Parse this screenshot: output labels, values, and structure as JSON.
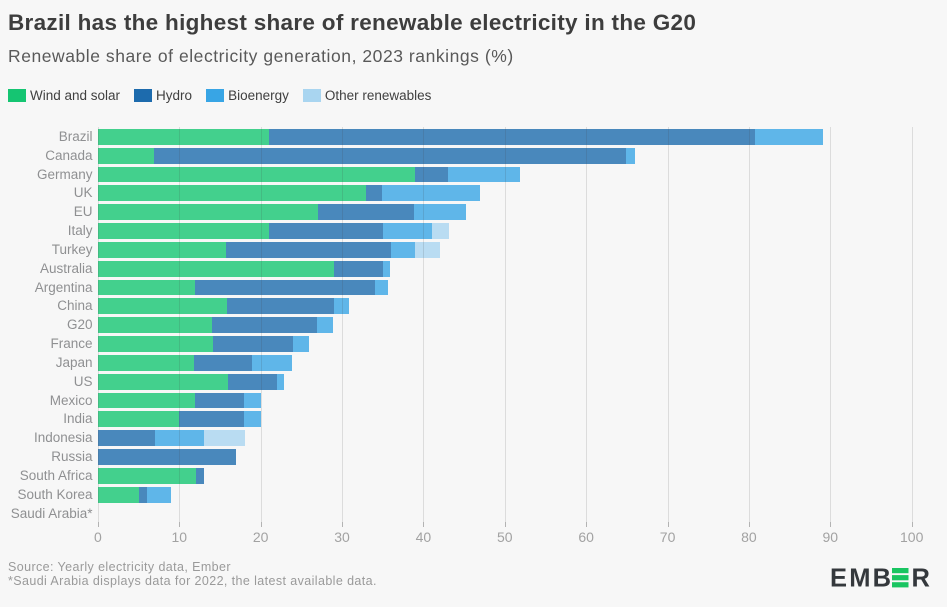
{
  "title": "Brazil has the highest share of renewable electricity in the G20",
  "subtitle": "Renewable share of electricity generation, 2023 rankings (%)",
  "legend": [
    {
      "label": "Wind and solar",
      "color": "#15c572"
    },
    {
      "label": "Hydro",
      "color": "#1d6bad"
    },
    {
      "label": "Bioenergy",
      "color": "#38a5e5"
    },
    {
      "label": "Other renewables",
      "color": "#a9d5f0"
    }
  ],
  "chart_data": {
    "type": "bar",
    "orientation": "horizontal",
    "stacked": true,
    "title": "Brazil has the highest share of renewable electricity in the G20",
    "subtitle": "Renewable share of electricity generation, 2023 rankings (%)",
    "xlabel": "",
    "ylabel": "",
    "xlim": [
      0,
      100
    ],
    "x_ticks": [
      0,
      10,
      20,
      30,
      40,
      50,
      60,
      70,
      80,
      90,
      100
    ],
    "grid": true,
    "legend_position": "top",
    "bar_opacity": 0.8,
    "categories": [
      "Brazil",
      "Canada",
      "Germany",
      "UK",
      "EU",
      "Italy",
      "Turkey",
      "Australia",
      "Argentina",
      "China",
      "G20",
      "France",
      "Japan",
      "US",
      "Mexico",
      "India",
      "Indonesia",
      "Russia",
      "South Africa",
      "South Korea",
      "Saudi Arabia*"
    ],
    "series": [
      {
        "name": "Wind and solar",
        "color": "#15c572",
        "values": [
          21.0,
          6.9,
          39.0,
          33.0,
          27.0,
          21.0,
          15.8,
          29.0,
          11.9,
          15.9,
          14.0,
          14.1,
          11.8,
          16.0,
          11.9,
          10.0,
          0,
          0,
          12.0,
          5.0,
          0
        ]
      },
      {
        "name": "Hydro",
        "color": "#1d6bad",
        "values": [
          59.8,
          58.0,
          4.0,
          1.9,
          11.9,
          14.0,
          20.2,
          6.0,
          22.2,
          13.1,
          12.9,
          9.9,
          7.1,
          6.0,
          6.1,
          8.0,
          7.0,
          17.0,
          1.0,
          1.0,
          0
        ]
      },
      {
        "name": "Bioenergy",
        "color": "#38a5e5",
        "values": [
          8.3,
          1.1,
          8.9,
          12.1,
          6.3,
          6.0,
          3.0,
          0.9,
          1.6,
          1.9,
          2.0,
          2.0,
          5.0,
          0.9,
          2.0,
          2.0,
          6.0,
          0,
          0,
          3.0,
          0
        ]
      },
      {
        "name": "Other renewables",
        "color": "#a9d5f0",
        "values": [
          0,
          0,
          0,
          0,
          0,
          2.1,
          3.0,
          0,
          0,
          0,
          0,
          0,
          0,
          0,
          0,
          0,
          5.1,
          0,
          0,
          0,
          0
        ]
      }
    ],
    "totals": [
      89.1,
      66.0,
      51.9,
      47.0,
      45.2,
      43.1,
      42.0,
      35.9,
      35.7,
      30.9,
      28.9,
      26.0,
      23.9,
      22.9,
      20.0,
      20.0,
      18.1,
      17.0,
      13.0,
      9.0,
      0
    ]
  },
  "footer": {
    "source_line": "Source: Yearly electricity data, Ember",
    "footnote_line": "*Saudi Arabia displays data for 2022, the latest available data."
  },
  "logo": {
    "text_pre": "EMB",
    "text_post": "R",
    "mark": "three-green-bars",
    "charcoal": "#34383c",
    "green": "#19c561"
  }
}
